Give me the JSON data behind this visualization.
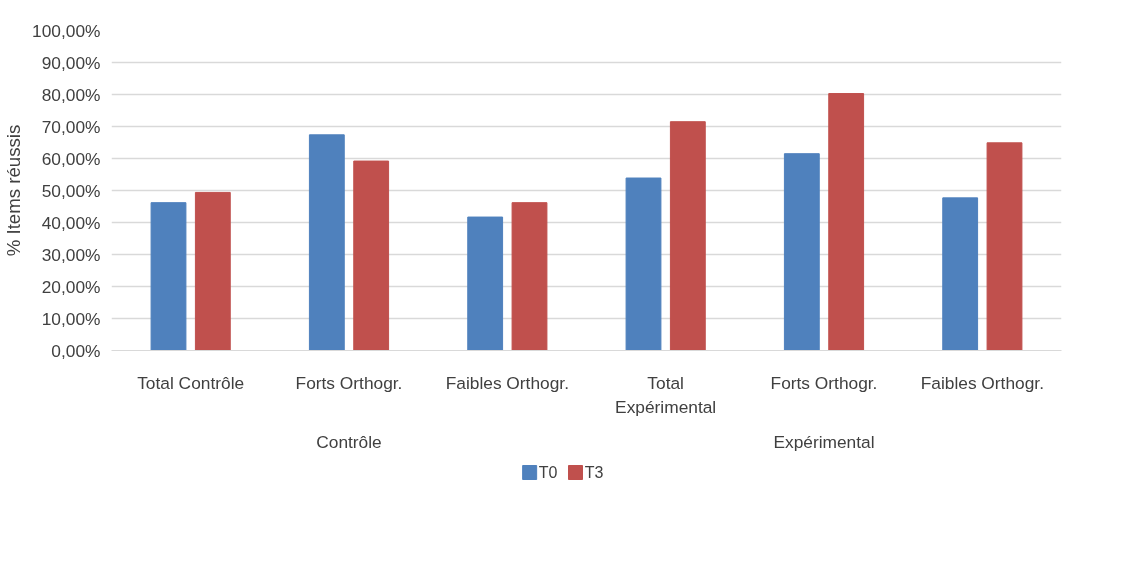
{
  "chart_data": {
    "type": "bar",
    "ylabel": "% Items réussis",
    "categories": [
      "Total Contrôle",
      "Forts Orthogr.",
      "Faibles Orthogr.",
      "Total Expérimental",
      "Forts Orthogr.",
      "Faibles Orthogr."
    ],
    "annotations": [
      "Contrôle",
      "Expérimental"
    ],
    "series": [
      {
        "name": "T0",
        "color": "#4f81bd",
        "values": [
          46.2,
          67.4,
          41.7,
          53.9,
          61.5,
          47.7
        ]
      },
      {
        "name": "T3",
        "color": "#c0504d",
        "values": [
          49.4,
          59.2,
          46.2,
          71.5,
          80.3,
          64.9
        ]
      }
    ],
    "ylim": [
      0,
      100
    ],
    "yticks": [
      {
        "value": 0,
        "label": "0,00%"
      },
      {
        "value": 10,
        "label": "10,00%"
      },
      {
        "value": 20,
        "label": "20,00%"
      },
      {
        "value": 30,
        "label": "30,00%"
      },
      {
        "value": 40,
        "label": "40,00%"
      },
      {
        "value": 50,
        "label": "50,00%"
      },
      {
        "value": 60,
        "label": "60,00%"
      },
      {
        "value": 70,
        "label": "70,00%"
      },
      {
        "value": 80,
        "label": "80,00%"
      },
      {
        "value": 90,
        "label": "90,00%"
      },
      {
        "value": 100,
        "label": "100,00%"
      }
    ],
    "grid": "y",
    "legend": "bottom"
  }
}
